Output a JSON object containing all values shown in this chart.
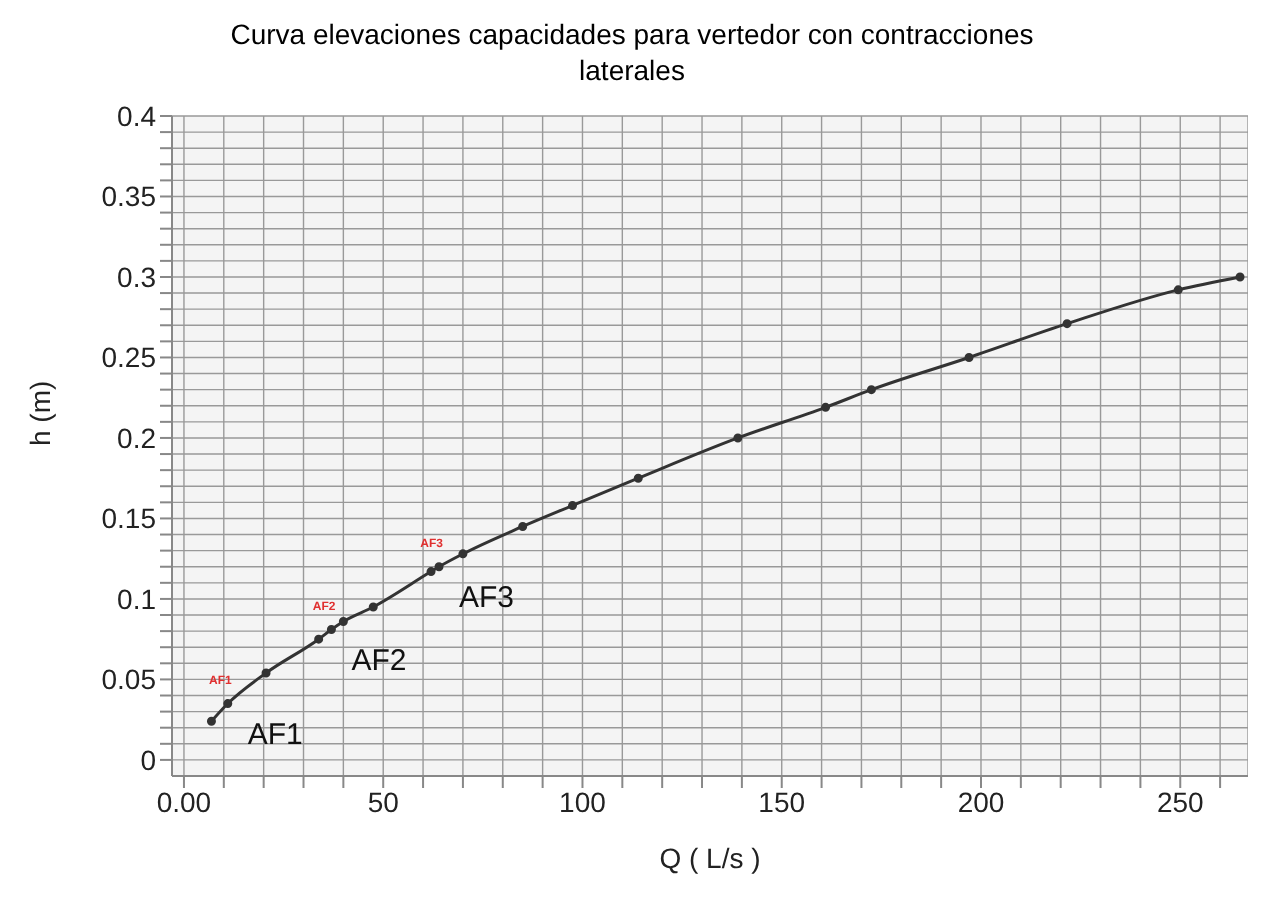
{
  "chart_data": {
    "type": "line",
    "title": "Curva elevaciones capacidades para vertedor con contracciones laterales",
    "xlabel": "Q ( L/s )",
    "ylabel": "h (m)",
    "x": [
      6.9,
      11,
      20.6,
      33.8,
      37,
      40,
      47.5,
      62,
      64,
      70,
      85,
      97.5,
      114,
      139,
      161,
      172.5,
      197,
      221.6,
      249.5,
      265
    ],
    "series": [
      {
        "color": "#333333",
        "values": [
          0.024,
          0.035,
          0.054,
          0.075,
          0.081,
          0.086,
          0.095,
          0.117,
          0.12,
          0.128,
          0.145,
          0.158,
          0.175,
          0.2,
          0.219,
          0.23,
          0.25,
          0.271,
          0.292,
          0.3
        ]
      }
    ],
    "xlim": [
      -3,
      267
    ],
    "xticks": [
      {
        "value": 0,
        "label": "0.00"
      },
      {
        "value": 10,
        "label": null
      },
      {
        "value": 20,
        "label": null
      },
      {
        "value": 30,
        "label": null
      },
      {
        "value": 40,
        "label": null
      },
      50,
      {
        "value": 60,
        "label": null
      },
      {
        "value": 70,
        "label": null
      },
      {
        "value": 80,
        "label": null
      },
      {
        "value": 90,
        "label": null
      },
      100,
      {
        "value": 110,
        "label": null
      },
      {
        "value": 120,
        "label": null
      },
      {
        "value": 130,
        "label": null
      },
      {
        "value": 140,
        "label": null
      },
      150,
      {
        "value": 160,
        "label": null
      },
      {
        "value": 170,
        "label": null
      },
      {
        "value": 180,
        "label": null
      },
      {
        "value": 190,
        "label": null
      },
      200,
      {
        "value": 210,
        "label": null
      },
      {
        "value": 220,
        "label": null
      },
      {
        "value": 230,
        "label": null
      },
      {
        "value": 240,
        "label": null
      },
      250,
      {
        "value": 260,
        "label": null
      }
    ],
    "ylim": [
      -0.01,
      0.4
    ],
    "yticks": [
      0,
      {
        "value": 0.01,
        "label": null
      },
      {
        "value": 0.02,
        "label": null
      },
      {
        "value": 0.03,
        "label": null
      },
      {
        "value": 0.04,
        "label": null
      },
      0.05,
      {
        "value": 0.06,
        "label": null
      },
      {
        "value": 0.07,
        "label": null
      },
      {
        "value": 0.08,
        "label": null
      },
      {
        "value": 0.09,
        "label": null
      },
      0.1,
      {
        "value": 0.11,
        "label": null
      },
      {
        "value": 0.12,
        "label": null
      },
      {
        "value": 0.13,
        "label": null
      },
      {
        "value": 0.14,
        "label": null
      },
      0.15,
      {
        "value": 0.16,
        "label": null
      },
      {
        "value": 0.17,
        "label": null
      },
      {
        "value": 0.18,
        "label": null
      },
      {
        "value": 0.19,
        "label": null
      },
      0.2,
      {
        "value": 0.21,
        "label": null
      },
      {
        "value": 0.22,
        "label": null
      },
      {
        "value": 0.23,
        "label": null
      },
      {
        "value": 0.24,
        "label": null
      },
      0.25,
      {
        "value": 0.26,
        "label": null
      },
      {
        "value": 0.27,
        "label": null
      },
      {
        "value": 0.28,
        "label": null
      },
      {
        "value": 0.29,
        "label": null
      },
      0.3,
      {
        "value": 0.31,
        "label": null
      },
      {
        "value": 0.32,
        "label": null
      },
      {
        "value": 0.33,
        "label": null
      },
      {
        "value": 0.34,
        "label": null
      },
      0.35,
      {
        "value": 0.36,
        "label": null
      },
      {
        "value": 0.37,
        "label": null
      },
      {
        "value": 0.38,
        "label": null
      },
      {
        "value": 0.39,
        "label": null
      },
      0.4
    ],
    "grid": true,
    "marker": "circle",
    "line_style": "solid",
    "legend": false,
    "annotations": [
      {
        "text": "AF1",
        "x": 11,
        "y": 0.035
      },
      {
        "text": "AF2",
        "x": 37,
        "y": 0.081
      },
      {
        "text": "AF3",
        "x": 64,
        "y": 0.12
      },
      {
        "text": "AF1",
        "x": 11,
        "y": 0.035
      },
      {
        "text": "AF2",
        "x": 37,
        "y": 0.081
      },
      {
        "text": "AF3",
        "x": 64,
        "y": 0.12
      }
    ]
  }
}
